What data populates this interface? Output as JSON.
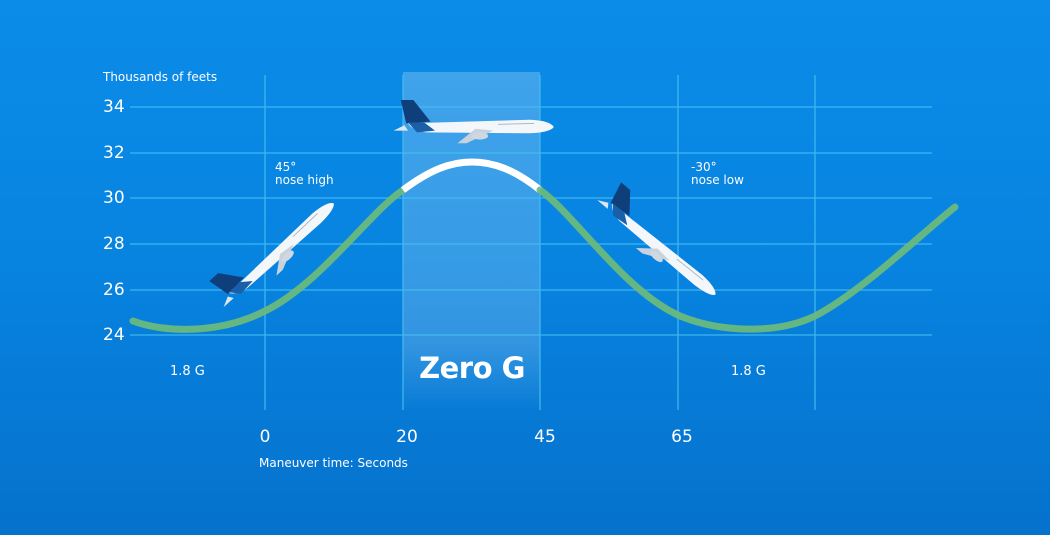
{
  "y_axis": {
    "title": "Thousands of feets",
    "ticks": [
      "34",
      "32",
      "30",
      "28",
      "26",
      "24"
    ]
  },
  "x_axis": {
    "title": "Maneuver time: Seconds",
    "ticks": [
      "0",
      "20",
      "45",
      "65"
    ]
  },
  "annotations": {
    "climb": {
      "angle": "45°",
      "attitude": "nose high"
    },
    "dive": {
      "angle": "-30°",
      "attitude": "nose low"
    },
    "g_left": "1.8 G",
    "g_right": "1.8 G",
    "zero_g": "Zero G"
  },
  "colors": {
    "background": "#0783e0",
    "curve": "#6dbb7a",
    "zero_g_segment": "#ffffff",
    "grid": "#4cc3f5"
  },
  "icons": [
    "airplane-climbing",
    "airplane-level",
    "airplane-diving"
  ]
}
